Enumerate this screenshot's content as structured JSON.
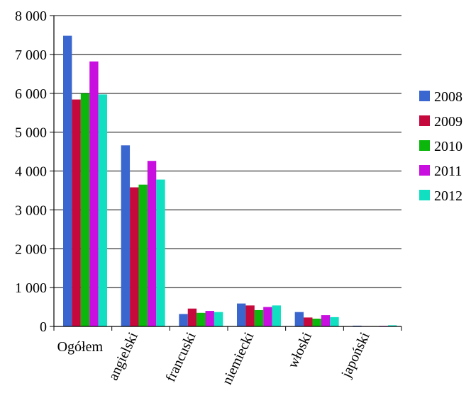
{
  "chart_data": {
    "type": "bar",
    "title": "",
    "xlabel": "",
    "ylabel": "",
    "ylim": [
      0,
      8000
    ],
    "yticks": [
      0,
      1000,
      2000,
      3000,
      4000,
      5000,
      6000,
      7000,
      8000
    ],
    "ytick_labels": [
      "0",
      "1 000",
      "2 000",
      "3 000",
      "4 000",
      "5 000",
      "6 000",
      "7 000",
      "8 000"
    ],
    "grid": "horizontal",
    "legend_position": "right",
    "categories": [
      "Ogółem",
      "angielski",
      "francuski",
      "niemiecki",
      "włoski",
      "japoński"
    ],
    "series": [
      {
        "name": "2008",
        "color": "#3a66cf",
        "values": [
          7480,
          4660,
          320,
          590,
          370,
          20
        ]
      },
      {
        "name": "2009",
        "color": "#c5093d",
        "values": [
          5840,
          3580,
          460,
          540,
          230,
          10
        ]
      },
      {
        "name": "2010",
        "color": "#0ab70a",
        "values": [
          6000,
          3650,
          350,
          420,
          200,
          10
        ]
      },
      {
        "name": "2011",
        "color": "#c80fe0",
        "values": [
          6820,
          4260,
          400,
          500,
          290,
          15
        ]
      },
      {
        "name": "2012",
        "color": "#10dfc1",
        "values": [
          5970,
          3780,
          370,
          540,
          240,
          30
        ]
      }
    ]
  }
}
